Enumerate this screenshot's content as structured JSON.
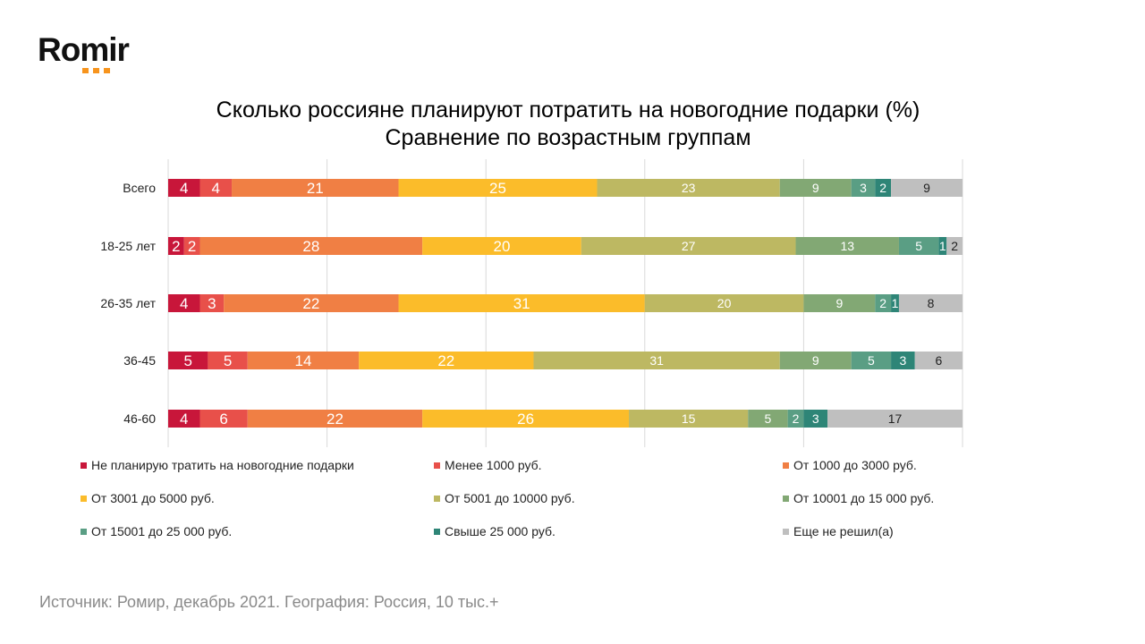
{
  "logo": {
    "text": "Romir"
  },
  "chart_data": {
    "type": "bar",
    "orientation": "horizontal-stacked-100",
    "title": "Сколько россияне планируют потратить на новогодние подарки (%)",
    "subtitle": "Сравнение по возрастным группам",
    "categories": [
      "Всего",
      "18-25 лет",
      "26-35 лет",
      "36-45",
      "46-60"
    ],
    "xlim": [
      0,
      100
    ],
    "grid": true,
    "legend_position": "bottom",
    "series": [
      {
        "name": "Не планирую  тратить на новогодние подарки",
        "color": "#C8163A",
        "values": [
          4,
          2,
          4,
          5,
          4
        ]
      },
      {
        "name": "Менее 1000 руб.",
        "color": "#E8504A",
        "values": [
          4,
          2,
          3,
          5,
          6
        ]
      },
      {
        "name": "От 1000 до 3000 руб.",
        "color": "#F07F44",
        "values": [
          21,
          28,
          22,
          14,
          22
        ]
      },
      {
        "name": "От 3001 до 5000 руб.",
        "color": "#FBBC2A",
        "values": [
          25,
          20,
          31,
          22,
          26
        ]
      },
      {
        "name": "От 5001 до 10000 руб.",
        "color": "#BDB862",
        "values": [
          23,
          27,
          20,
          31,
          15
        ]
      },
      {
        "name": "От 10001 до 15 000 руб.",
        "color": "#82A874",
        "values": [
          9,
          13,
          9,
          9,
          5
        ]
      },
      {
        "name": "От 15001 до 25 000 руб.",
        "color": "#5A9E84",
        "values": [
          3,
          5,
          2,
          5,
          2
        ]
      },
      {
        "name": "Свыше 25 000 руб.",
        "color": "#2E8577",
        "values": [
          2,
          1,
          1,
          3,
          3
        ]
      },
      {
        "name": "Еще не решил(а)",
        "color": "#BFBFBF",
        "values": [
          9,
          2,
          8,
          6,
          17
        ]
      }
    ]
  },
  "source": "Источник: Ромир,  декабрь 2021. География:  Россия, 10 тыс.+"
}
